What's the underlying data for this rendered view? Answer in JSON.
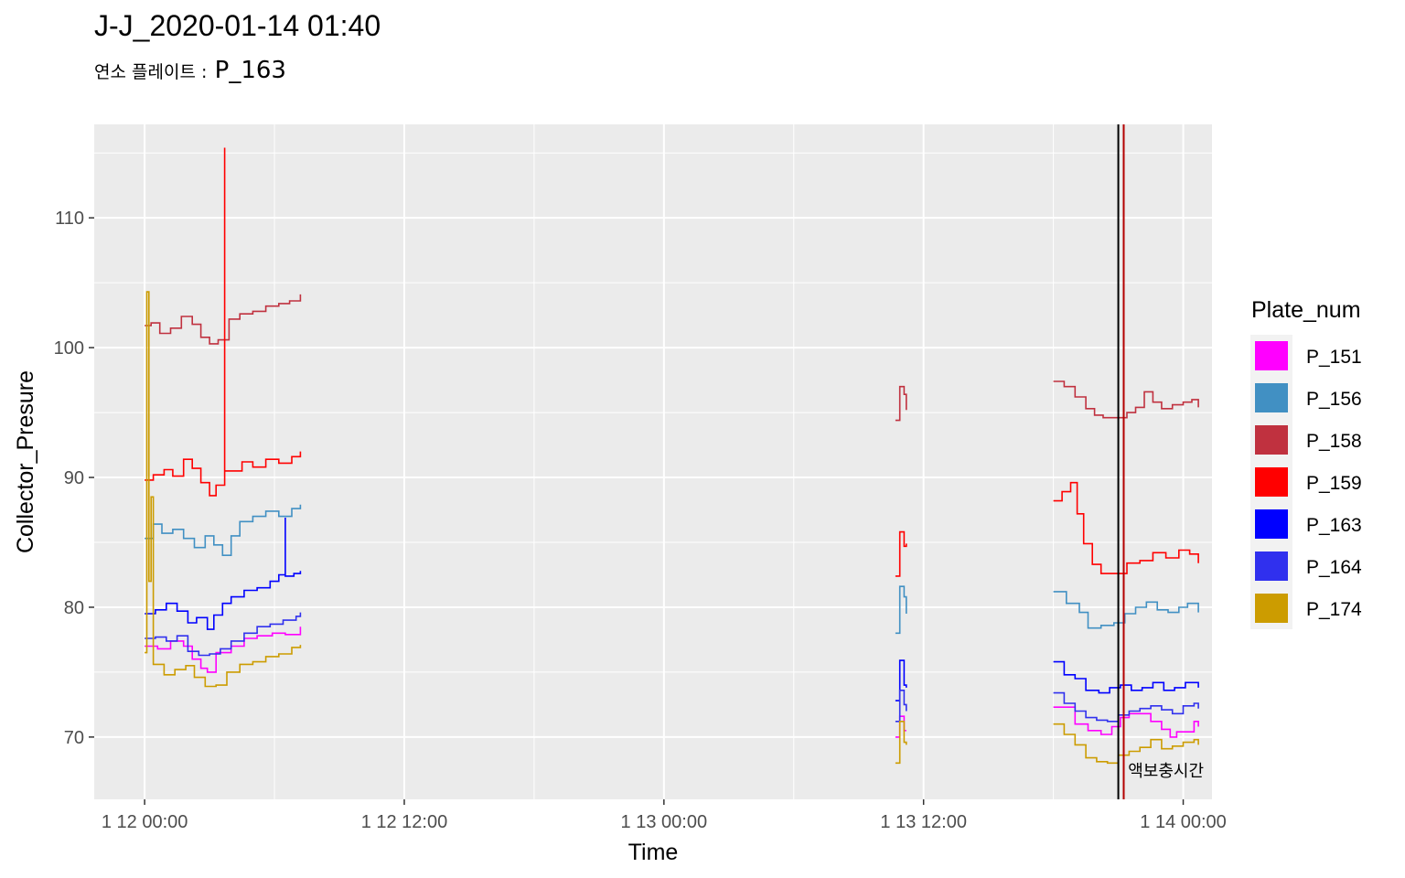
{
  "chart_data": {
    "type": "line",
    "title": "J-J_2020-01-14 01:40",
    "subtitle_label": "연소 플레이트 :",
    "subtitle_value": "P_163",
    "xlabel": "Time",
    "ylabel": "Collector_Presure",
    "x_unit": "hours since 1 12 00:00",
    "xlim": [
      -2.33,
      49.33
    ],
    "ylim": [
      65.2,
      117.2
    ],
    "x_ticks": [
      {
        "value": 0,
        "label": "1 12 00:00"
      },
      {
        "value": 12,
        "label": "1 12 12:00"
      },
      {
        "value": 24,
        "label": "1 13 00:00"
      },
      {
        "value": 36,
        "label": "1 13 12:00"
      },
      {
        "value": 48,
        "label": "1 14 00:00"
      }
    ],
    "y_ticks": [
      70,
      80,
      90,
      100,
      110
    ],
    "grid": true,
    "legend": {
      "title": "Plate_num",
      "position": "right"
    },
    "vlines": [
      {
        "x": 45.0,
        "color": "#000000"
      },
      {
        "x": 45.25,
        "color": "#b30000"
      }
    ],
    "annotation": {
      "text": "액보충시간",
      "x": 47.2,
      "y": 67.4
    },
    "series": [
      {
        "name": "P_151",
        "color": "#ff00ff",
        "segments": [
          [
            [
              0,
              77.0
            ],
            [
              0.6,
              76.8
            ],
            [
              1.2,
              77.4
            ],
            [
              1.8,
              77.0
            ],
            [
              2.2,
              76.0
            ],
            [
              2.6,
              75.3
            ],
            [
              2.9,
              75.0
            ],
            [
              3.3,
              76.5
            ],
            [
              4.0,
              77.0
            ],
            [
              4.6,
              77.6
            ],
            [
              5.2,
              77.8
            ],
            [
              5.9,
              78.0
            ],
            [
              6.5,
              77.9
            ],
            [
              7.2,
              78.5
            ]
          ],
          [
            [
              34.7,
              70.0
            ],
            [
              34.9,
              71.6
            ],
            [
              35.1,
              70.5
            ],
            [
              35.2,
              70.5
            ]
          ],
          [
            [
              42.0,
              72.3
            ],
            [
              42.5,
              72.3
            ],
            [
              43.0,
              71.0
            ],
            [
              43.6,
              70.5
            ],
            [
              44.2,
              70.2
            ],
            [
              44.7,
              70.8
            ],
            [
              45.1,
              71.5
            ],
            [
              45.5,
              71.8
            ],
            [
              46.0,
              71.8
            ],
            [
              46.5,
              71.2
            ],
            [
              47.0,
              70.6
            ],
            [
              47.4,
              70.0
            ],
            [
              47.7,
              70.4
            ],
            [
              48.1,
              70.4
            ],
            [
              48.5,
              71.2
            ],
            [
              48.7,
              70.8
            ]
          ]
        ]
      },
      {
        "name": "P_156",
        "color": "#4190c3",
        "segments": [
          [
            [
              0,
              85.3
            ],
            [
              0.4,
              86.4
            ],
            [
              0.8,
              85.7
            ],
            [
              1.3,
              86.0
            ],
            [
              1.8,
              85.3
            ],
            [
              2.3,
              84.6
            ],
            [
              2.8,
              85.5
            ],
            [
              3.2,
              84.8
            ],
            [
              3.6,
              84.0
            ],
            [
              4.0,
              85.5
            ],
            [
              4.4,
              86.6
            ],
            [
              5.0,
              87.0
            ],
            [
              5.6,
              87.4
            ],
            [
              6.2,
              87.0
            ],
            [
              6.8,
              87.6
            ],
            [
              7.2,
              87.9
            ]
          ],
          [
            [
              34.7,
              78.0
            ],
            [
              34.9,
              81.6
            ],
            [
              35.1,
              80.8
            ],
            [
              35.2,
              79.5
            ]
          ],
          [
            [
              42.0,
              81.2
            ],
            [
              42.6,
              80.3
            ],
            [
              43.2,
              79.6
            ],
            [
              43.6,
              78.4
            ],
            [
              44.2,
              78.6
            ],
            [
              44.8,
              78.8
            ],
            [
              45.3,
              79.5
            ],
            [
              45.8,
              80.0
            ],
            [
              46.3,
              80.4
            ],
            [
              46.8,
              79.8
            ],
            [
              47.3,
              79.6
            ],
            [
              47.8,
              80.0
            ],
            [
              48.2,
              80.3
            ],
            [
              48.7,
              79.6
            ]
          ]
        ]
      },
      {
        "name": "P_158",
        "color": "#c0313f",
        "segments": [
          [
            [
              0,
              101.7
            ],
            [
              0.3,
              101.9
            ],
            [
              0.7,
              101.1
            ],
            [
              1.2,
              101.5
            ],
            [
              1.7,
              102.4
            ],
            [
              2.2,
              101.8
            ],
            [
              2.6,
              100.8
            ],
            [
              3.0,
              100.3
            ],
            [
              3.4,
              100.6
            ],
            [
              3.9,
              102.2
            ],
            [
              4.4,
              102.6
            ],
            [
              5.0,
              102.8
            ],
            [
              5.6,
              103.2
            ],
            [
              6.2,
              103.4
            ],
            [
              6.7,
              103.6
            ],
            [
              7.2,
              104.1
            ]
          ],
          [
            [
              34.7,
              94.4
            ],
            [
              34.9,
              97.0
            ],
            [
              35.1,
              96.4
            ],
            [
              35.2,
              95.2
            ]
          ],
          [
            [
              42.0,
              97.4
            ],
            [
              42.5,
              97.0
            ],
            [
              43.0,
              96.2
            ],
            [
              43.5,
              95.3
            ],
            [
              43.9,
              94.8
            ],
            [
              44.3,
              94.6
            ],
            [
              44.9,
              94.6
            ],
            [
              45.4,
              95.0
            ],
            [
              45.8,
              95.4
            ],
            [
              46.2,
              96.6
            ],
            [
              46.6,
              95.8
            ],
            [
              47.0,
              95.3
            ],
            [
              47.5,
              95.6
            ],
            [
              48.0,
              95.8
            ],
            [
              48.4,
              96.0
            ],
            [
              48.7,
              95.4
            ]
          ]
        ]
      },
      {
        "name": "P_159",
        "color": "#ff0000",
        "segments": [
          [
            [
              0,
              89.8
            ],
            [
              0.4,
              90.2
            ],
            [
              0.9,
              90.6
            ],
            [
              1.3,
              90.1
            ],
            [
              1.8,
              91.4
            ],
            [
              2.2,
              90.7
            ],
            [
              2.6,
              89.6
            ],
            [
              3.0,
              88.6
            ],
            [
              3.3,
              89.4
            ],
            [
              3.7,
              89.8
            ],
            [
              3.7,
              115.4
            ],
            [
              3.7,
              90.5
            ],
            [
              4.1,
              90.5
            ],
            [
              4.5,
              91.2
            ],
            [
              5.0,
              90.8
            ],
            [
              5.6,
              91.4
            ],
            [
              6.2,
              91.1
            ],
            [
              6.8,
              91.6
            ],
            [
              7.2,
              92.0
            ]
          ],
          [
            [
              34.7,
              82.4
            ],
            [
              34.9,
              85.8
            ],
            [
              35.1,
              84.7
            ],
            [
              35.2,
              84.9
            ]
          ],
          [
            [
              42.0,
              88.2
            ],
            [
              42.4,
              88.9
            ],
            [
              42.8,
              89.6
            ],
            [
              43.1,
              87.2
            ],
            [
              43.4,
              84.9
            ],
            [
              43.8,
              83.3
            ],
            [
              44.2,
              82.6
            ],
            [
              44.8,
              82.6
            ],
            [
              45.4,
              83.4
            ],
            [
              46.0,
              83.6
            ],
            [
              46.6,
              84.2
            ],
            [
              47.2,
              83.8
            ],
            [
              47.8,
              84.4
            ],
            [
              48.3,
              84.1
            ],
            [
              48.7,
              83.4
            ]
          ]
        ]
      },
      {
        "name": "P_163",
        "color": "#0000ff",
        "segments": [
          [
            [
              0,
              79.5
            ],
            [
              0.5,
              79.8
            ],
            [
              1.0,
              80.3
            ],
            [
              1.5,
              79.7
            ],
            [
              2.0,
              78.8
            ],
            [
              2.4,
              79.2
            ],
            [
              2.9,
              78.3
            ],
            [
              3.2,
              79.4
            ],
            [
              3.6,
              80.3
            ],
            [
              4.0,
              80.8
            ],
            [
              4.6,
              81.3
            ],
            [
              5.2,
              81.5
            ],
            [
              5.8,
              82.0
            ],
            [
              6.2,
              82.5
            ],
            [
              6.5,
              86.9
            ],
            [
              6.5,
              82.4
            ],
            [
              6.9,
              82.6
            ],
            [
              7.2,
              82.8
            ]
          ],
          [
            [
              34.7,
              72.8
            ],
            [
              34.9,
              75.9
            ],
            [
              35.1,
              74.0
            ],
            [
              35.2,
              73.8
            ]
          ],
          [
            [
              42.0,
              75.8
            ],
            [
              42.5,
              74.8
            ],
            [
              43.0,
              74.5
            ],
            [
              43.5,
              73.6
            ],
            [
              44.1,
              73.4
            ],
            [
              44.6,
              73.8
            ],
            [
              45.1,
              74.0
            ],
            [
              45.6,
              73.6
            ],
            [
              46.1,
              73.8
            ],
            [
              46.6,
              74.2
            ],
            [
              47.1,
              73.6
            ],
            [
              47.6,
              73.8
            ],
            [
              48.1,
              74.2
            ],
            [
              48.7,
              73.8
            ]
          ]
        ]
      },
      {
        "name": "P_164",
        "color": "#3030ee",
        "segments": [
          [
            [
              0,
              77.6
            ],
            [
              0.5,
              77.7
            ],
            [
              1.0,
              77.4
            ],
            [
              1.5,
              77.8
            ],
            [
              2.0,
              76.6
            ],
            [
              2.5,
              76.3
            ],
            [
              3.0,
              76.4
            ],
            [
              3.5,
              76.8
            ],
            [
              4.0,
              77.4
            ],
            [
              4.6,
              78.0
            ],
            [
              5.2,
              78.5
            ],
            [
              5.8,
              78.7
            ],
            [
              6.4,
              79.0
            ],
            [
              7.0,
              79.3
            ],
            [
              7.2,
              79.6
            ]
          ],
          [
            [
              34.7,
              71.2
            ],
            [
              34.9,
              73.6
            ],
            [
              35.1,
              72.5
            ],
            [
              35.2,
              72.0
            ]
          ],
          [
            [
              42.0,
              73.4
            ],
            [
              42.5,
              72.6
            ],
            [
              43.0,
              72.0
            ],
            [
              43.5,
              71.5
            ],
            [
              44.0,
              71.3
            ],
            [
              44.5,
              71.2
            ],
            [
              45.0,
              71.7
            ],
            [
              45.5,
              72.0
            ],
            [
              46.0,
              72.2
            ],
            [
              46.5,
              72.4
            ],
            [
              47.0,
              72.1
            ],
            [
              47.5,
              71.8
            ],
            [
              48.0,
              72.4
            ],
            [
              48.5,
              72.6
            ],
            [
              48.7,
              72.2
            ]
          ]
        ]
      },
      {
        "name": "P_174",
        "color": "#cc9c00",
        "segments": [
          [
            [
              0,
              76.5
            ],
            [
              0.1,
              104.3
            ],
            [
              0.2,
              82.0
            ],
            [
              0.3,
              88.5
            ],
            [
              0.4,
              75.6
            ],
            [
              0.9,
              74.8
            ],
            [
              1.4,
              75.2
            ],
            [
              1.9,
              75.5
            ],
            [
              2.3,
              74.6
            ],
            [
              2.8,
              73.9
            ],
            [
              3.3,
              74.0
            ],
            [
              3.8,
              75.0
            ],
            [
              4.4,
              75.6
            ],
            [
              5.0,
              75.8
            ],
            [
              5.6,
              76.2
            ],
            [
              6.2,
              76.4
            ],
            [
              6.8,
              76.9
            ],
            [
              7.2,
              77.1
            ]
          ],
          [
            [
              34.7,
              68.0
            ],
            [
              34.9,
              71.2
            ],
            [
              35.1,
              69.6
            ],
            [
              35.2,
              69.4
            ]
          ],
          [
            [
              42.0,
              71.0
            ],
            [
              42.5,
              70.2
            ],
            [
              43.0,
              69.4
            ],
            [
              43.5,
              68.4
            ],
            [
              44.0,
              68.1
            ],
            [
              44.5,
              68.0
            ],
            [
              45.0,
              68.6
            ],
            [
              45.5,
              68.9
            ],
            [
              46.0,
              69.2
            ],
            [
              46.5,
              69.8
            ],
            [
              47.0,
              69.1
            ],
            [
              47.5,
              69.3
            ],
            [
              48.0,
              69.6
            ],
            [
              48.5,
              69.8
            ],
            [
              48.7,
              69.4
            ]
          ]
        ]
      }
    ]
  }
}
